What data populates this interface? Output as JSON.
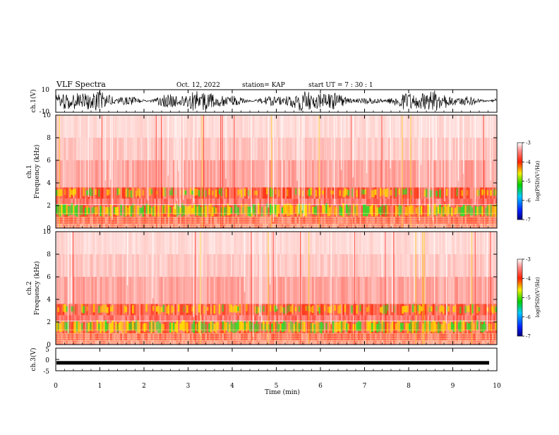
{
  "header": {
    "title": "VLF Spectra",
    "date": "Oct. 12, 2022",
    "station": "station= KAP",
    "start": "start  UT =   7 : 30 : 1"
  },
  "colors": {
    "accent_red": "#ff2a1a",
    "accent_yellow": "#ffe000",
    "accent_green": "#2ee02e",
    "waveform": "#000000"
  },
  "chart_data": [
    {
      "type": "line",
      "name": "ch1-waveform",
      "ylabel": "ch.1(V)",
      "ylim": [
        -10,
        10
      ],
      "yticks": [
        "10",
        "-10"
      ],
      "xlim": [
        0,
        10
      ],
      "note_values": "dense noisy waveform spanning roughly -9 to +9 V"
    },
    {
      "type": "heatmap",
      "name": "ch1-spectrogram",
      "ylabel_line1": "ch.1",
      "ylabel_line2": "Frequency (kHz)",
      "ylim": [
        0,
        10
      ],
      "yticks": [
        "0",
        "2",
        "4",
        "6",
        "8",
        "10"
      ],
      "xlim": [
        0,
        10
      ],
      "colorbar": {
        "label": "log(PSD)(V²/Hz)",
        "range": [
          -7,
          -3
        ],
        "ticks": [
          "-3",
          "-4",
          "-5",
          "-6",
          "-7"
        ]
      }
    },
    {
      "type": "heatmap",
      "name": "ch2-spectrogram",
      "ylabel_line1": "ch.2",
      "ylabel_line2": "Frequency (kHz)",
      "ylim": [
        0,
        10
      ],
      "yticks": [
        "0",
        "2",
        "4",
        "6",
        "8",
        "10"
      ],
      "xlim": [
        0,
        10
      ],
      "colorbar": {
        "label": "log(PSD)(V²/Hz)",
        "range": [
          -7,
          -3
        ],
        "ticks": [
          "-3",
          "-4",
          "-5",
          "-6",
          "-7"
        ]
      }
    },
    {
      "type": "line",
      "name": "ch3-waveform",
      "ylabel": "ch.3(V)",
      "ylim": [
        -5,
        5
      ],
      "yticks": [
        "5",
        "0",
        "-5"
      ],
      "xlim": [
        0,
        10
      ],
      "note_values": "near-constant band around -1.5 V"
    }
  ],
  "xaxis": {
    "label": "Time  (min)",
    "ticks": [
      "0",
      "1",
      "2",
      "3",
      "4",
      "5",
      "6",
      "7",
      "8",
      "9",
      "10"
    ]
  }
}
